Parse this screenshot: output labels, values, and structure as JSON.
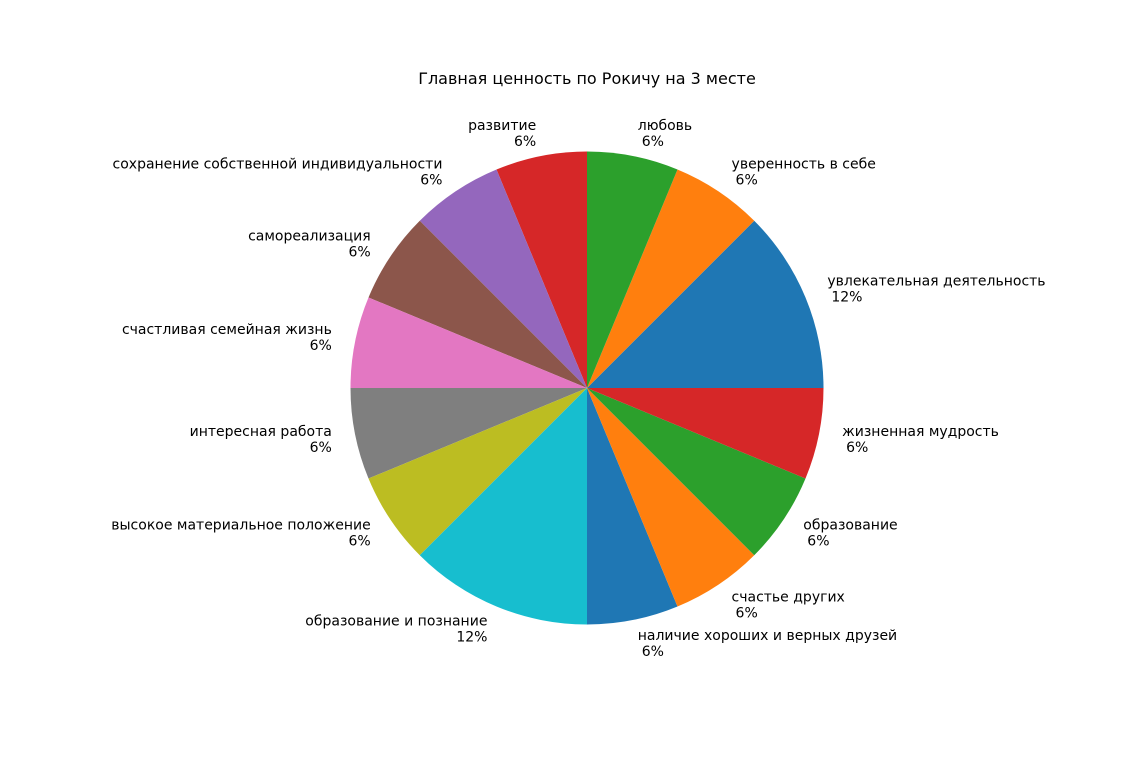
{
  "chart_data": {
    "type": "pie",
    "title": "Главная ценность по Рокичу на 3 месте",
    "start_angle_deg": 0,
    "direction": "counterclockwise",
    "slices": [
      {
        "label": "увлекательная деятельность",
        "value": 2,
        "pct_label": "12%",
        "color": "#1f77b4"
      },
      {
        "label": "уверенность в себе",
        "value": 1,
        "pct_label": "6%",
        "color": "#ff7f0e"
      },
      {
        "label": "любовь",
        "value": 1,
        "pct_label": "6%",
        "color": "#2ca02c"
      },
      {
        "label": "развитие",
        "value": 1,
        "pct_label": "6%",
        "color": "#d62728"
      },
      {
        "label": "сохранение собственной индивидуальности",
        "value": 1,
        "pct_label": "6%",
        "color": "#9467bd"
      },
      {
        "label": "самореализация",
        "value": 1,
        "pct_label": "6%",
        "color": "#8c564b"
      },
      {
        "label": "счастливая семейная жизнь",
        "value": 1,
        "pct_label": "6%",
        "color": "#e377c2"
      },
      {
        "label": "интересная работа",
        "value": 1,
        "pct_label": "6%",
        "color": "#7f7f7f"
      },
      {
        "label": "высокое материальное положение",
        "value": 1,
        "pct_label": "6%",
        "color": "#bcbd22"
      },
      {
        "label": "образование и познание",
        "value": 2,
        "pct_label": "12%",
        "color": "#17becf"
      },
      {
        "label": "наличие хороших и верных друзей",
        "value": 1,
        "pct_label": "6%",
        "color": "#1f77b4"
      },
      {
        "label": "счастье других",
        "value": 1,
        "pct_label": "6%",
        "color": "#ff7f0e"
      },
      {
        "label": "образование",
        "value": 1,
        "pct_label": "6%",
        "color": "#2ca02c"
      },
      {
        "label": "жизненная мудрость",
        "value": 1,
        "pct_label": "6%",
        "color": "#d62728"
      }
    ]
  }
}
